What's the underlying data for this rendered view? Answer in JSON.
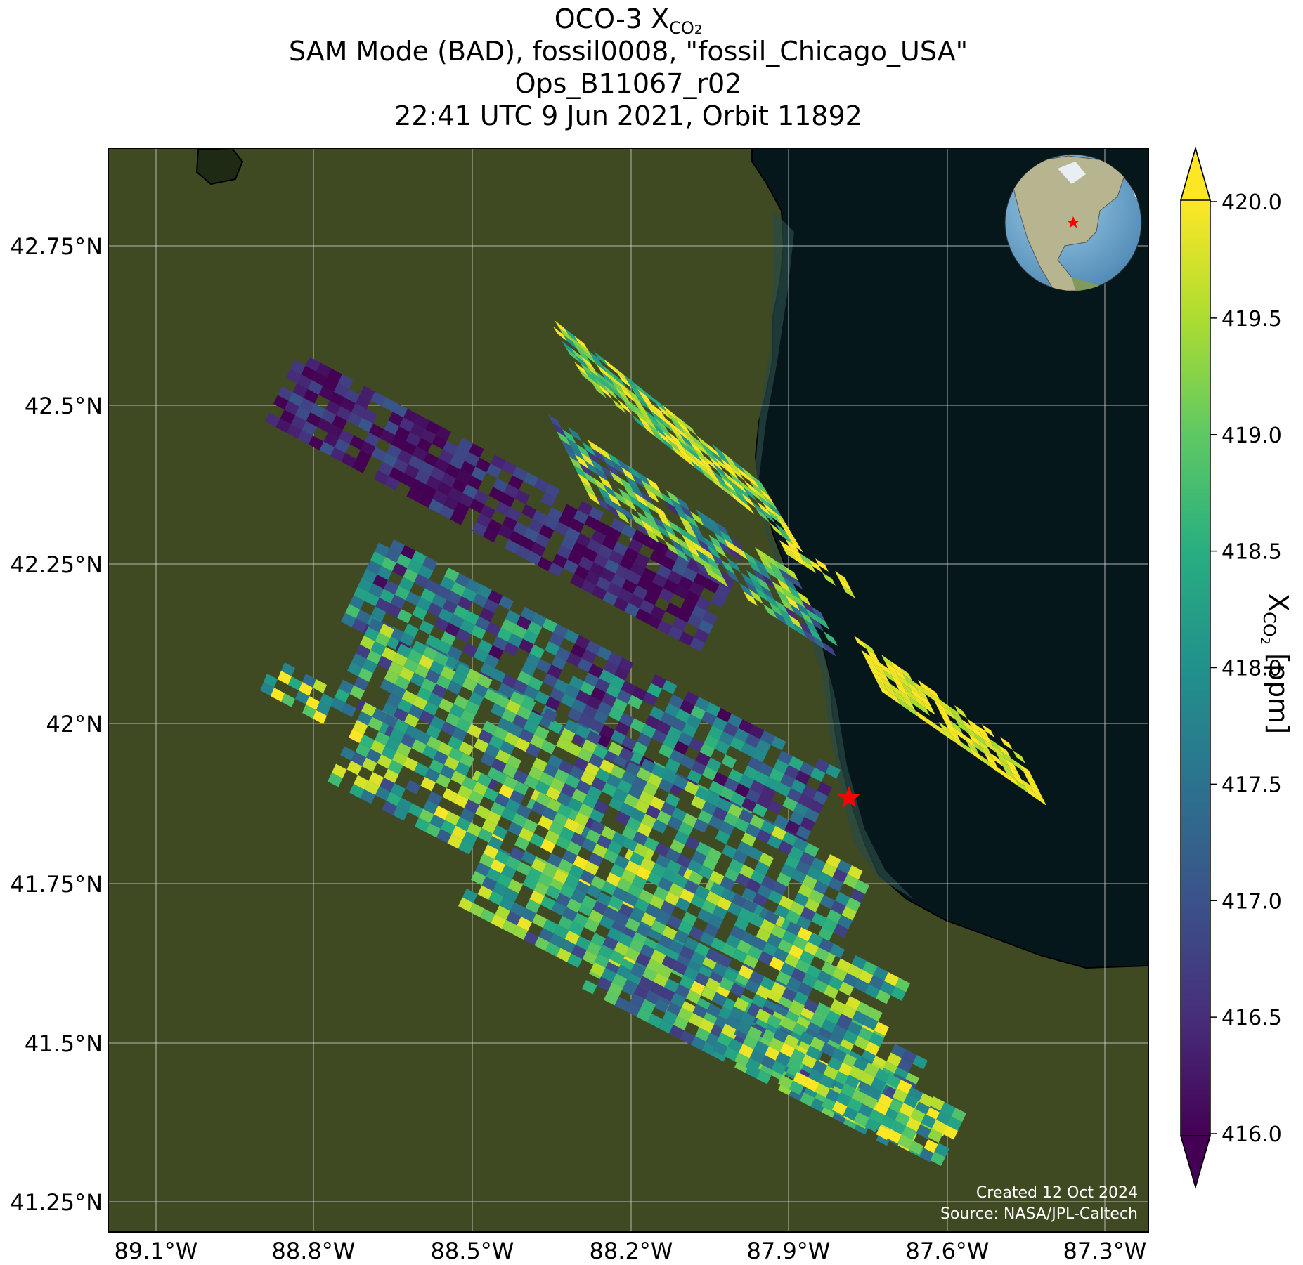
{
  "title": {
    "line1_main": "OCO-3 X",
    "line1_sub": "CO",
    "line1_sub2": "2",
    "line2": "SAM Mode (BAD), fossil0008, \"fossil_Chicago_USA\"",
    "line3": "Ops_B11067_r02",
    "line4": "22:41 UTC 9 Jun 2021, Orbit 11892"
  },
  "map": {
    "lat_labels": [
      "42.75°N",
      "42.5°N",
      "42.25°N",
      "42°N",
      "41.75°N",
      "41.5°N",
      "41.25°N"
    ],
    "lon_labels": [
      "89.1°W",
      "88.8°W",
      "88.5°W",
      "88.2°W",
      "87.9°W",
      "87.6°W",
      "87.3°W"
    ],
    "site_marker_color": "#ff0000",
    "land_color": "#3f4a22",
    "lake_color": "#06171c",
    "credit_line1": "Created 12 Oct 2024",
    "credit_line2": "Source: NASA/JPL-Caltech"
  },
  "colorbar": {
    "tick_labels": [
      "420.0",
      "419.5",
      "419.0",
      "418.5",
      "418.0",
      "417.5",
      "417.0",
      "416.5",
      "416.0"
    ],
    "label_main": "X",
    "label_sub": "CO",
    "label_sub2": "2",
    "label_unit": " [ppm]",
    "colormap": "viridis",
    "range": [
      416.0,
      420.0
    ]
  }
}
